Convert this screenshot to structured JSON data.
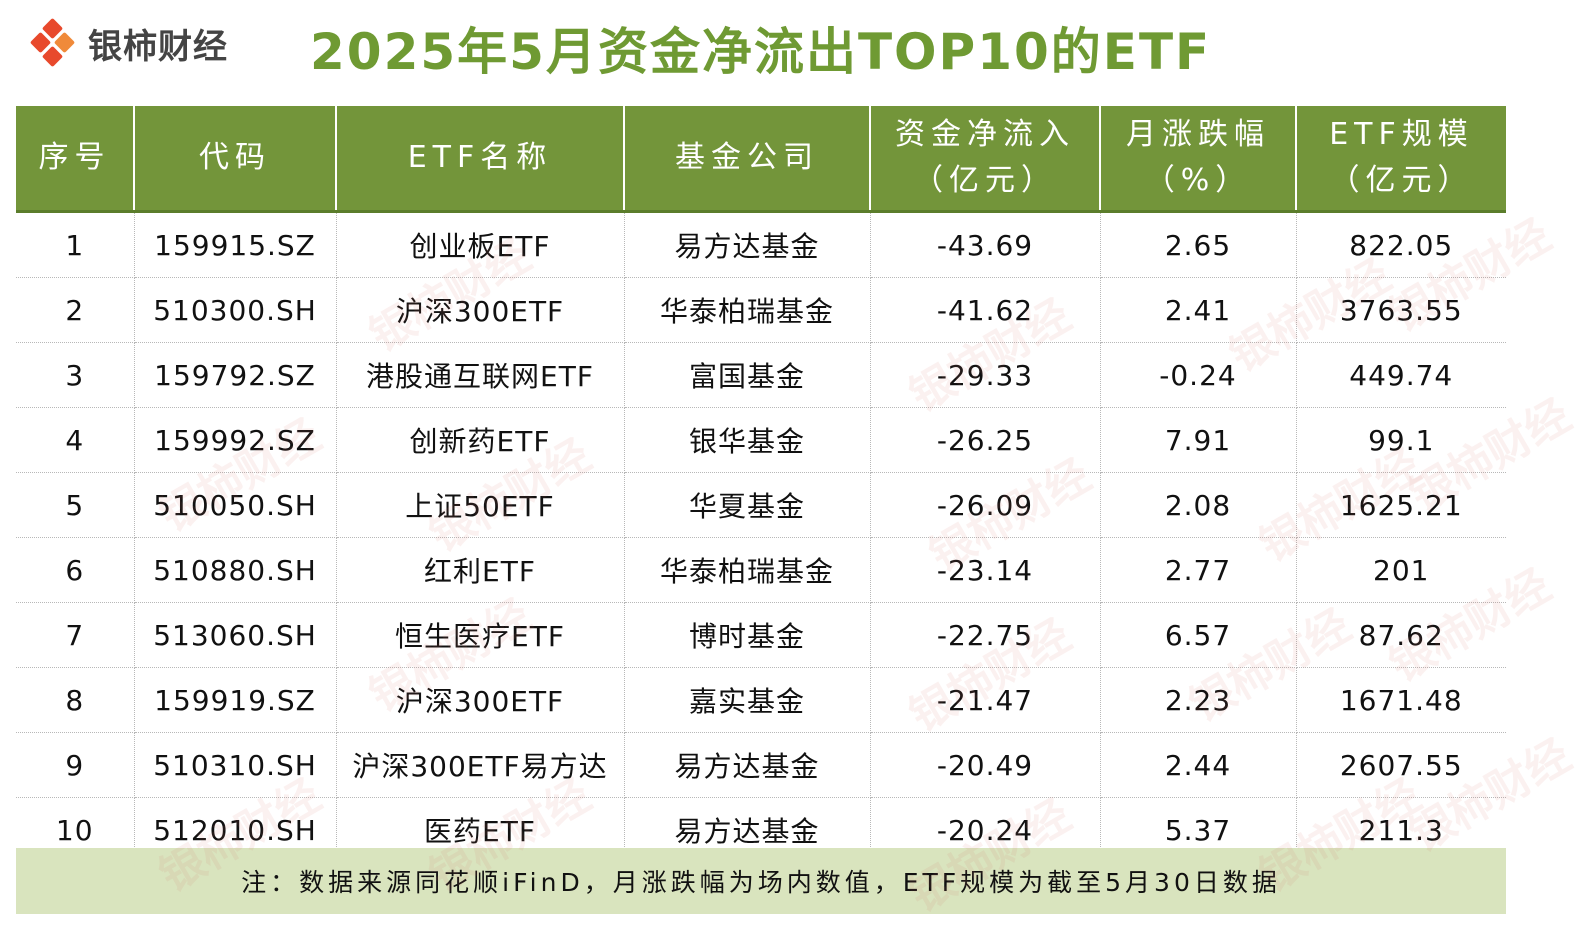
{
  "brand": {
    "logo_text": "银柿财经"
  },
  "title": "2025年5月资金净流出TOP10的ETF",
  "table": {
    "headers": [
      [
        "序号"
      ],
      [
        "代码"
      ],
      [
        "ETF名称"
      ],
      [
        "基金公司"
      ],
      [
        "资金净流入",
        "（亿元）"
      ],
      [
        "月涨跌幅",
        "（%）"
      ],
      [
        "ETF规模",
        "（亿元）"
      ]
    ],
    "rows": [
      [
        "1",
        "159915.SZ",
        "创业板ETF",
        "易方达基金",
        "-43.69",
        "2.65",
        "822.05"
      ],
      [
        "2",
        "510300.SH",
        "沪深300ETF",
        "华泰柏瑞基金",
        "-41.62",
        "2.41",
        "3763.55"
      ],
      [
        "3",
        "159792.SZ",
        "港股通互联网ETF",
        "富国基金",
        "-29.33",
        "-0.24",
        "449.74"
      ],
      [
        "4",
        "159992.SZ",
        "创新药ETF",
        "银华基金",
        "-26.25",
        "7.91",
        "99.1"
      ],
      [
        "5",
        "510050.SH",
        "上证50ETF",
        "华夏基金",
        "-26.09",
        "2.08",
        "1625.21"
      ],
      [
        "6",
        "510880.SH",
        "红利ETF",
        "华泰柏瑞基金",
        "-23.14",
        "2.77",
        "201"
      ],
      [
        "7",
        "513060.SH",
        "恒生医疗ETF",
        "博时基金",
        "-22.75",
        "6.57",
        "87.62"
      ],
      [
        "8",
        "159919.SZ",
        "沪深300ETF",
        "嘉实基金",
        "-21.47",
        "2.23",
        "1671.48"
      ],
      [
        "9",
        "510310.SH",
        "沪深300ETF易方达",
        "易方达基金",
        "-20.49",
        "2.44",
        "2607.55"
      ],
      [
        "10",
        "512010.SH",
        "医药ETF",
        "易方达基金",
        "-20.24",
        "5.37",
        "211.3"
      ]
    ]
  },
  "note": "注：数据来源同花顺iFinD，月涨跌幅为场内数值，ETF规模为截至5月30日数据",
  "colors": {
    "title": "#6f9a33",
    "header_bg": "#73953a",
    "note_bg": "#d9e4be",
    "logo": "#e8492c"
  }
}
